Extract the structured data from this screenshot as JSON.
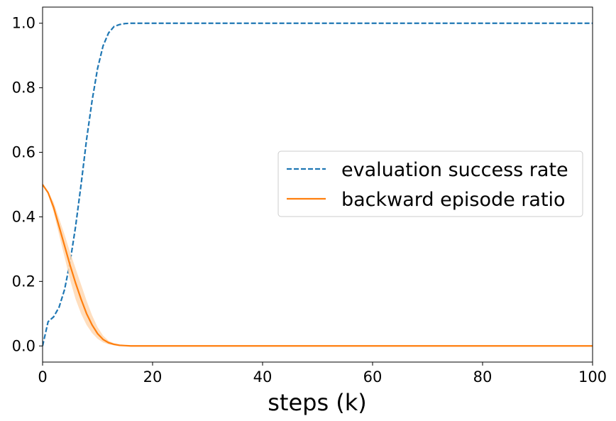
{
  "chart_data": {
    "type": "line",
    "title": "",
    "xlabel": "steps (k)",
    "ylabel": "",
    "xlim": [
      0,
      100
    ],
    "ylim": [
      -0.05,
      1.05
    ],
    "xticks": [
      0,
      20,
      40,
      60,
      80,
      100
    ],
    "xtick_labels": [
      "0",
      "20",
      "40",
      "60",
      "80",
      "100"
    ],
    "yticks": [
      0.0,
      0.2,
      0.4,
      0.6,
      0.8,
      1.0
    ],
    "ytick_labels": [
      "0.0",
      "0.2",
      "0.4",
      "0.6",
      "0.8",
      "1.0"
    ],
    "grid": false,
    "legend_position": "center-right",
    "series": [
      {
        "name": "evaluation success rate",
        "color": "#1f77b4",
        "style": "dashed",
        "x": [
          0,
          1,
          2,
          3,
          4,
          5,
          6,
          7,
          8,
          9,
          10,
          11,
          12,
          13,
          14,
          15,
          16,
          17,
          18,
          20,
          25,
          30,
          40,
          50,
          60,
          70,
          80,
          90,
          100
        ],
        "y": [
          0.0,
          0.075,
          0.09,
          0.12,
          0.175,
          0.26,
          0.37,
          0.5,
          0.64,
          0.76,
          0.86,
          0.93,
          0.97,
          0.99,
          0.996,
          0.999,
          1.0,
          1.0,
          1.0,
          1.0,
          1.0,
          1.0,
          1.0,
          1.0,
          1.0,
          1.0,
          1.0,
          1.0,
          1.0
        ]
      },
      {
        "name": "backward episode ratio",
        "color": "#ff7f0e",
        "style": "solid",
        "x": [
          0,
          1,
          2,
          3,
          4,
          5,
          6,
          7,
          8,
          9,
          10,
          11,
          12,
          13,
          14,
          15,
          16,
          17,
          18,
          20,
          25,
          30,
          40,
          50,
          60,
          70,
          80,
          90,
          100
        ],
        "y": [
          0.5,
          0.475,
          0.43,
          0.37,
          0.31,
          0.25,
          0.195,
          0.145,
          0.1,
          0.065,
          0.038,
          0.02,
          0.01,
          0.005,
          0.002,
          0.001,
          0.0,
          0.0,
          0.0,
          0.0,
          0.0,
          0.0,
          0.0,
          0.0,
          0.0,
          0.0,
          0.0,
          0.0,
          0.0
        ],
        "band_lower": [
          0.5,
          0.47,
          0.415,
          0.345,
          0.275,
          0.205,
          0.145,
          0.1,
          0.065,
          0.04,
          0.022,
          0.011,
          0.005,
          0.002,
          0.0,
          0.0,
          0.0,
          0.0,
          0.0,
          0.0,
          0.0,
          0.0,
          0.0,
          0.0,
          0.0,
          0.0,
          0.0,
          0.0,
          0.0
        ],
        "band_upper": [
          0.5,
          0.48,
          0.445,
          0.395,
          0.345,
          0.29,
          0.24,
          0.19,
          0.14,
          0.095,
          0.058,
          0.032,
          0.016,
          0.008,
          0.004,
          0.002,
          0.001,
          0.0,
          0.0,
          0.0,
          0.0,
          0.0,
          0.0,
          0.0,
          0.0,
          0.0,
          0.0,
          0.0,
          0.0
        ],
        "band_color": "#ffd8b3"
      }
    ]
  }
}
